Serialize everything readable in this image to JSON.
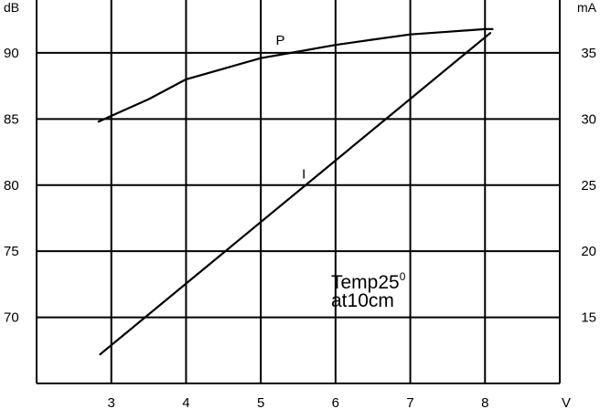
{
  "chart_data": {
    "type": "line",
    "title": "",
    "x": {
      "unit": "V",
      "ticks": [
        3,
        4,
        5,
        6,
        7,
        8
      ],
      "range": [
        2.0,
        9.0
      ]
    },
    "y_left": {
      "unit": "dB",
      "ticks": [
        70,
        75,
        80,
        85,
        90
      ],
      "range": [
        65,
        94
      ]
    },
    "y_right": {
      "unit": "mA",
      "ticks": [
        15,
        20,
        25,
        30,
        35
      ],
      "range": [
        10,
        39
      ]
    },
    "grid": true,
    "series": [
      {
        "name": "P",
        "axis": "left",
        "x": [
          2.83,
          3.5,
          4.0,
          4.5,
          5.0,
          5.5,
          6.0,
          6.5,
          7.0,
          7.5,
          8.0,
          8.1
        ],
        "y": [
          84.8,
          86.5,
          88.0,
          88.8,
          89.6,
          90.1,
          90.6,
          91.0,
          91.4,
          91.6,
          91.8,
          91.8
        ],
        "label": "P",
        "label_at": {
          "x": 5.2,
          "y": 90.6
        }
      },
      {
        "name": "I",
        "axis": "right",
        "x": [
          2.85,
          8.07
        ],
        "y": [
          12.2,
          36.5
        ],
        "label": "I",
        "label_at": {
          "x": 5.55,
          "y": 25.5
        }
      }
    ],
    "annotation": {
      "line1": "Temp25",
      "superscript": "0",
      "line2": "at10cm"
    }
  }
}
